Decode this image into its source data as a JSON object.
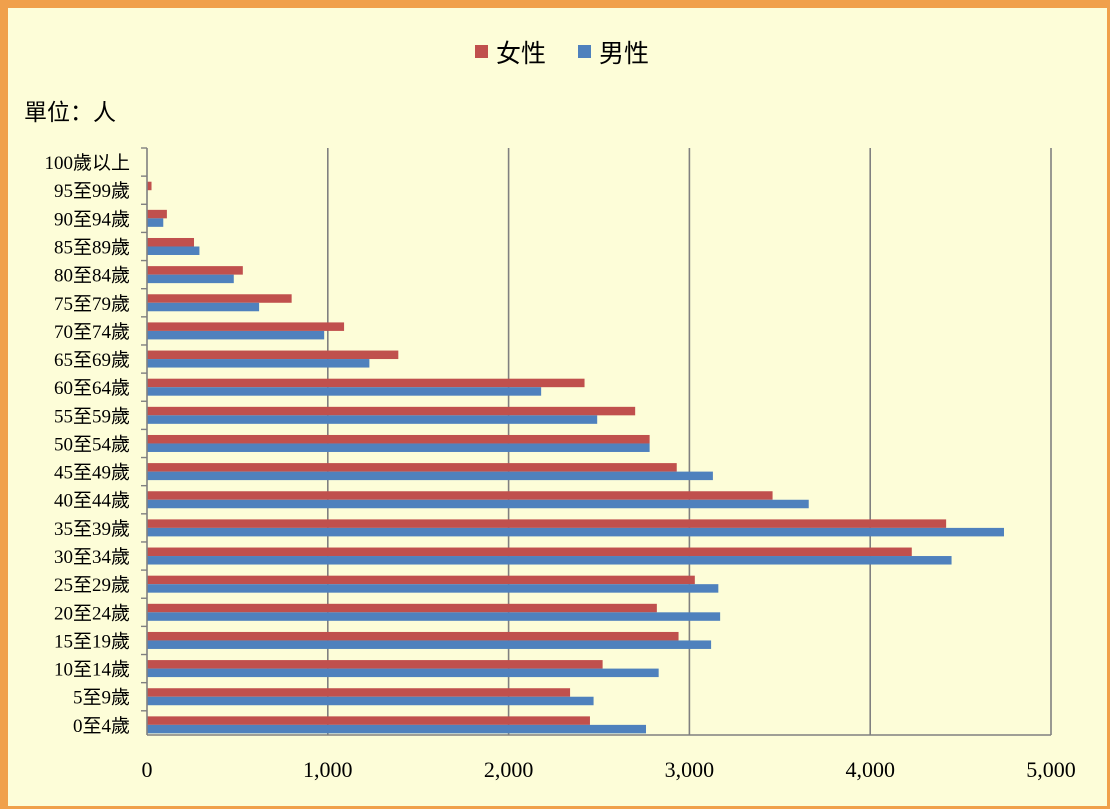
{
  "chart_data": {
    "type": "bar",
    "orientation": "horizontal",
    "unit_label": "單位：人",
    "categories": [
      "100歲以上",
      "95至99歲",
      "90至94歲",
      "85至89歲",
      "80至84歲",
      "75至79歲",
      "70至74歲",
      "65至69歲",
      "60至64歲",
      "55至59歲",
      "50至54歲",
      "45至49歲",
      "40至44歲",
      "35至39歲",
      "30至34歲",
      "25至29歲",
      "20至24歲",
      "15至19歲",
      "10至14歲",
      "5至9歲",
      "0至4歲"
    ],
    "series": [
      {
        "name": "女性",
        "color": "#c0504d",
        "values": [
          2,
          25,
          110,
          260,
          530,
          800,
          1090,
          1390,
          2420,
          2700,
          2780,
          2930,
          3460,
          4420,
          4230,
          3030,
          2820,
          2940,
          2520,
          2340,
          2450
        ]
      },
      {
        "name": "男性",
        "color": "#4f81bd",
        "values": [
          0,
          3,
          90,
          290,
          480,
          620,
          980,
          1230,
          2180,
          2490,
          2780,
          3130,
          3660,
          4740,
          4450,
          3160,
          3170,
          3120,
          2830,
          2470,
          2760
        ]
      }
    ],
    "xlim": [
      0,
      5000
    ],
    "xticks": [
      "0",
      "1,000",
      "2,000",
      "3,000",
      "4,000",
      "5,000"
    ],
    "grid": true,
    "legend_position": "top-center"
  }
}
